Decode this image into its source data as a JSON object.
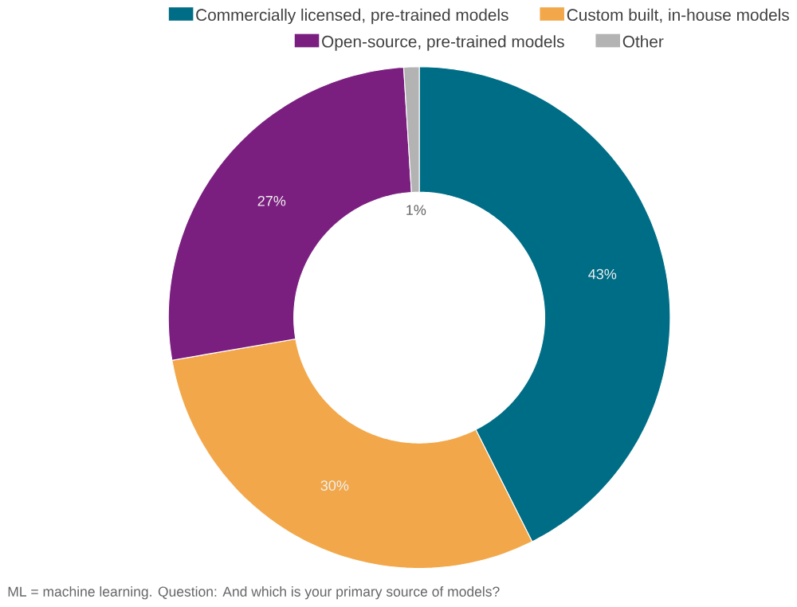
{
  "chart_data": {
    "type": "donut",
    "categories": [
      "Commercially licensed, pre-trained models",
      "Custom built, in-house models",
      "Open-source, pre-trained models",
      "Other"
    ],
    "values": [
      43,
      30,
      27,
      1
    ],
    "colors": [
      "#006d86",
      "#f2a84a",
      "#7a1f7f",
      "#b3b3b3"
    ],
    "value_labels": [
      "43%",
      "30%",
      "27%",
      "1%"
    ],
    "legend": "top",
    "annotations": [
      "ML = machine learning. Question: And which is your primary source of models?"
    ]
  }
}
